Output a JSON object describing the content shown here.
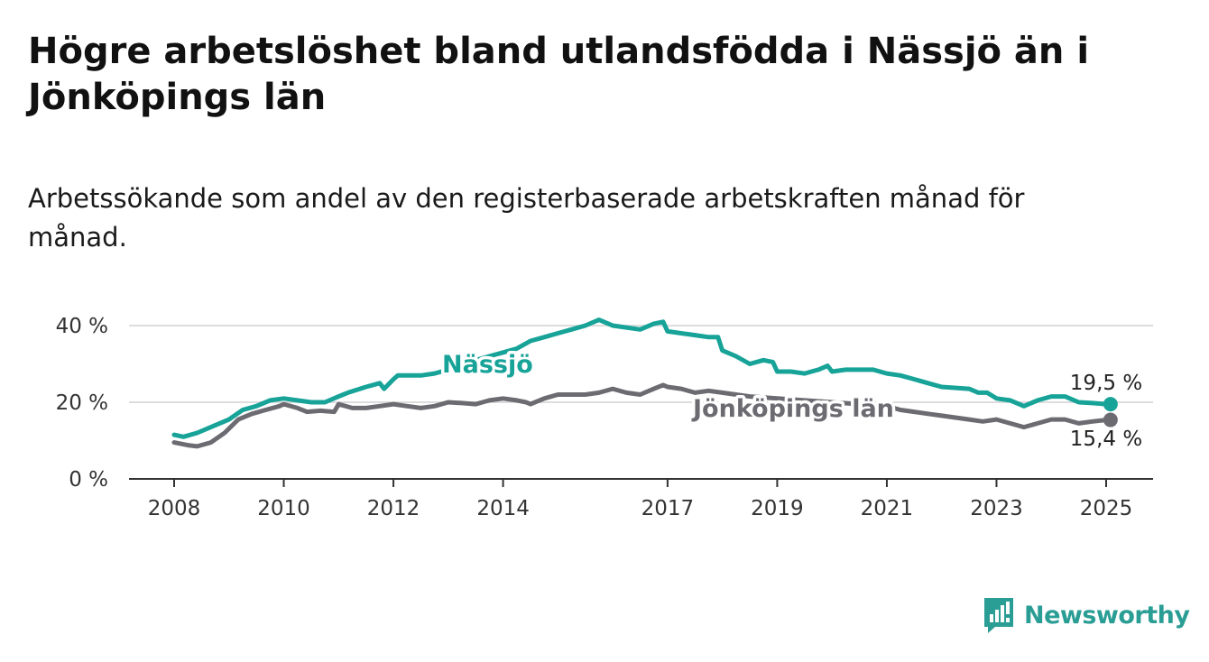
{
  "title": "Högre arbetslöshet bland utlandsfödda i Nässjö än i Jönköpings län",
  "subtitle": "Arbetssökande som andel av den registerbaserade arbetskraften månad för månad.",
  "brand": {
    "name": "Newsworthy",
    "icon": "newsworthy-bar-chart-icon",
    "color": "#2a9d94"
  },
  "chart_data": {
    "type": "line",
    "title": "",
    "xlabel": "",
    "ylabel": "",
    "xlim": [
      2008,
      2025.9
    ],
    "ylim": [
      0,
      40
    ],
    "y_ticks": [
      0,
      20,
      40
    ],
    "y_tick_labels": [
      "0 %",
      "20 %",
      "40 %"
    ],
    "x_ticks": [
      2008,
      2010,
      2012,
      2014,
      2017,
      2019,
      2021,
      2023,
      2025
    ],
    "x_tick_labels": [
      "2008",
      "2010",
      "2012",
      "2014",
      "2017",
      "2019",
      "2021",
      "2023",
      "2025"
    ],
    "grid": "horizontal",
    "series": [
      {
        "name": "Nässjö",
        "color": "#17a398",
        "end_label": "19,5 %",
        "x": [
          2008.0,
          2008.17,
          2008.42,
          2008.67,
          2009.0,
          2009.25,
          2009.5,
          2009.75,
          2010.0,
          2010.25,
          2010.5,
          2010.75,
          2011.0,
          2011.17,
          2011.5,
          2011.75,
          2011.83,
          2012.0,
          2012.08,
          2012.5,
          2012.75,
          2013.0,
          2013.25,
          2013.5,
          2013.75,
          2014.0,
          2014.25,
          2014.5,
          2014.75,
          2015.0,
          2015.25,
          2015.5,
          2015.75,
          2015.92,
          2016.0,
          2016.5,
          2016.75,
          2016.92,
          2017.0,
          2017.5,
          2017.75,
          2017.92,
          2018.0,
          2018.25,
          2018.5,
          2018.75,
          2018.92,
          2019.0,
          2019.25,
          2019.5,
          2019.75,
          2019.92,
          2020.0,
          2020.25,
          2020.5,
          2020.75,
          2021.0,
          2021.25,
          2021.5,
          2021.75,
          2022.0,
          2022.5,
          2022.67,
          2022.83,
          2023.0,
          2023.25,
          2023.5,
          2023.75,
          2024.0,
          2024.25,
          2024.5,
          2024.75,
          2025.0,
          2025.08
        ],
        "values": [
          11.5,
          11.0,
          12.0,
          13.5,
          15.5,
          18.0,
          19.0,
          20.5,
          21.0,
          20.5,
          20.0,
          20.0,
          21.5,
          22.5,
          24.0,
          25.0,
          23.5,
          26.0,
          27.0,
          27.0,
          27.5,
          28.5,
          30.0,
          31.0,
          32.0,
          33.0,
          34.0,
          36.0,
          37.0,
          38.0,
          39.0,
          40.0,
          41.5,
          40.5,
          40.0,
          39.0,
          40.5,
          41.0,
          38.5,
          37.5,
          37.0,
          37.0,
          33.5,
          32.0,
          30.0,
          31.0,
          30.5,
          28.0,
          28.0,
          27.5,
          28.5,
          29.5,
          28.0,
          28.5,
          28.5,
          28.5,
          27.5,
          27.0,
          26.0,
          25.0,
          24.0,
          23.5,
          22.5,
          22.5,
          21.0,
          20.5,
          19.0,
          20.5,
          21.5,
          21.5,
          20.0,
          19.8,
          19.5,
          19.5
        ]
      },
      {
        "name": "Jönköpings län",
        "color": "#6d6b72",
        "end_label": "15,4 %",
        "x": [
          2008.0,
          2008.25,
          2008.42,
          2008.67,
          2008.92,
          2009.17,
          2009.42,
          2009.67,
          2009.92,
          2010.0,
          2010.25,
          2010.42,
          2010.67,
          2010.92,
          2011.0,
          2011.25,
          2011.5,
          2011.75,
          2012.0,
          2012.25,
          2012.5,
          2012.75,
          2013.0,
          2013.25,
          2013.5,
          2013.75,
          2014.0,
          2014.25,
          2014.42,
          2014.5,
          2014.75,
          2015.0,
          2015.25,
          2015.5,
          2015.75,
          2016.0,
          2016.25,
          2016.5,
          2016.75,
          2016.92,
          2017.0,
          2017.25,
          2017.5,
          2017.75,
          2018.0,
          2018.5,
          2019.0,
          2019.5,
          2020.0,
          2020.5,
          2021.0,
          2021.25,
          2021.5,
          2021.75,
          2022.0,
          2022.25,
          2022.5,
          2022.75,
          2023.0,
          2023.25,
          2023.5,
          2023.75,
          2024.0,
          2024.25,
          2024.5,
          2024.75,
          2025.0,
          2025.08
        ],
        "values": [
          9.5,
          8.8,
          8.5,
          9.5,
          12.0,
          15.5,
          17.0,
          18.0,
          19.0,
          19.5,
          18.5,
          17.5,
          17.8,
          17.5,
          19.5,
          18.5,
          18.5,
          19.0,
          19.5,
          19.0,
          18.5,
          19.0,
          20.0,
          19.8,
          19.5,
          20.5,
          21.0,
          20.5,
          20.0,
          19.5,
          21.0,
          22.0,
          22.0,
          22.0,
          22.5,
          23.5,
          22.5,
          22.0,
          23.5,
          24.5,
          24.0,
          23.5,
          22.5,
          23.0,
          22.5,
          21.5,
          21.0,
          20.5,
          20.0,
          19.5,
          19.0,
          18.0,
          17.5,
          17.0,
          16.5,
          16.0,
          15.5,
          15.0,
          15.5,
          14.5,
          13.5,
          14.5,
          15.5,
          15.5,
          14.5,
          15.0,
          15.4,
          15.4
        ]
      }
    ]
  }
}
